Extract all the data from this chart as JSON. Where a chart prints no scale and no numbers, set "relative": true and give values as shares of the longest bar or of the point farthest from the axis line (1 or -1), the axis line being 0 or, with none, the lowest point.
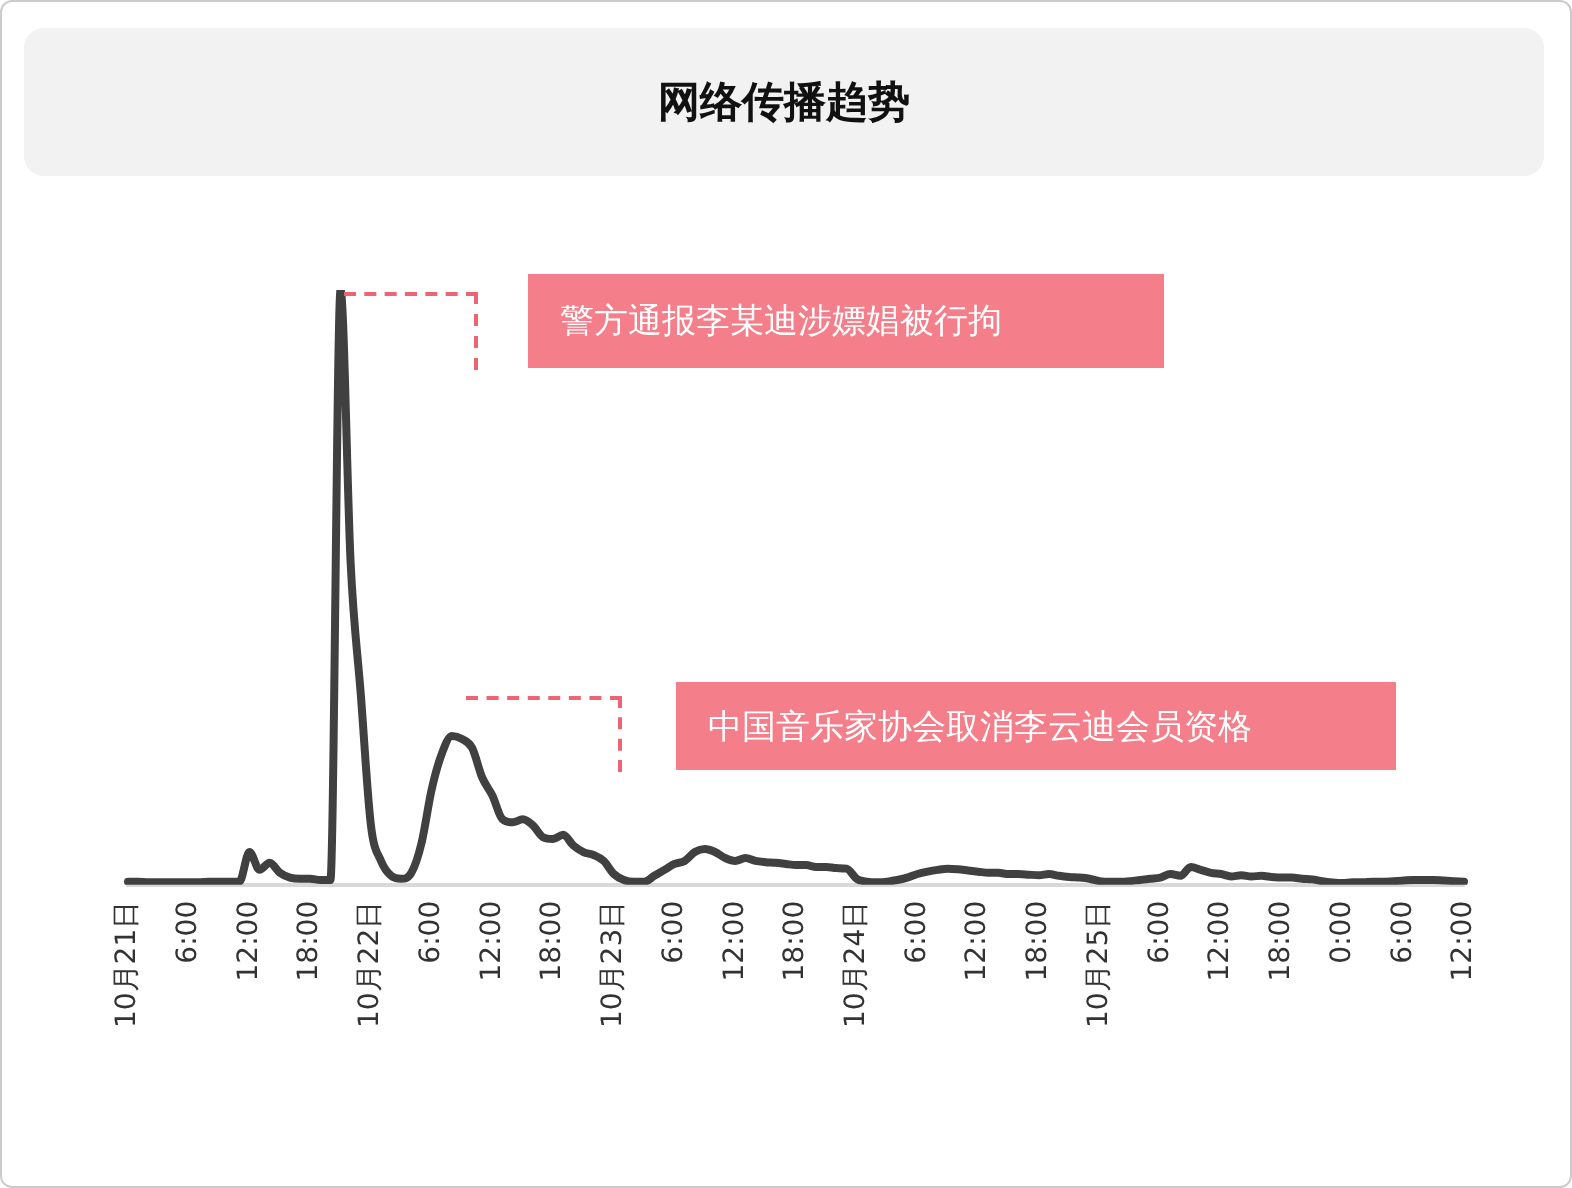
{
  "chart_data": {
    "type": "line",
    "title": "网络传播趋势",
    "relative": true,
    "grid": false,
    "legend": false,
    "marker": "none",
    "line_style": "solid",
    "annotations": [
      "警方通报李某迪涉嫖娼被行拘",
      "中国音乐家协会取消李云迪会员资格"
    ],
    "categories": [
      "10月21日",
      null,
      null,
      null,
      null,
      null,
      "6:00",
      null,
      null,
      null,
      null,
      null,
      "12:00",
      null,
      null,
      null,
      null,
      null,
      "18:00",
      null,
      null,
      null,
      null,
      null,
      "10月22日",
      null,
      null,
      null,
      null,
      null,
      "6:00",
      null,
      null,
      null,
      null,
      null,
      "12:00",
      null,
      null,
      null,
      null,
      null,
      "18:00",
      null,
      null,
      null,
      null,
      null,
      "10月23日",
      null,
      null,
      null,
      null,
      null,
      "6:00",
      null,
      null,
      null,
      null,
      null,
      "12:00",
      null,
      null,
      null,
      null,
      null,
      "18:00",
      null,
      null,
      null,
      null,
      null,
      "10月24日",
      null,
      null,
      null,
      null,
      null,
      "6:00",
      null,
      null,
      null,
      null,
      null,
      "12:00",
      null,
      null,
      null,
      null,
      null,
      "18:00",
      null,
      null,
      null,
      null,
      null,
      "10月25日",
      null,
      null,
      null,
      null,
      null,
      "6:00",
      null,
      null,
      null,
      null,
      null,
      "12:00",
      null,
      null,
      null,
      null,
      null,
      "18:00",
      null,
      null,
      null,
      null,
      null,
      "0:00",
      null,
      null,
      null,
      null,
      null,
      "6:00",
      null,
      null,
      null,
      null,
      null,
      "12:00"
    ],
    "series": [
      {
        "color": "#404040",
        "values": [
          0.005,
          0.005,
          0.004,
          0.004,
          0.004,
          0.004,
          0.004,
          0.004,
          0.005,
          0.005,
          0.005,
          0.005,
          0.055,
          0.025,
          0.037,
          0.02,
          0.012,
          0.01,
          0.01,
          0.008,
          0.008,
          1.0,
          0.54,
          0.32,
          0.1,
          0.04,
          0.015,
          0.01,
          0.02,
          0.07,
          0.16,
          0.22,
          0.25,
          0.245,
          0.23,
          0.18,
          0.15,
          0.11,
          0.105,
          0.11,
          0.1,
          0.08,
          0.077,
          0.084,
          0.066,
          0.055,
          0.05,
          0.04,
          0.018,
          0.008,
          0.005,
          0.005,
          0.015,
          0.025,
          0.035,
          0.04,
          0.055,
          0.06,
          0.055,
          0.045,
          0.04,
          0.045,
          0.04,
          0.038,
          0.037,
          0.035,
          0.033,
          0.033,
          0.03,
          0.03,
          0.028,
          0.027,
          0.01,
          0.005,
          0.004,
          0.005,
          0.008,
          0.012,
          0.018,
          0.022,
          0.025,
          0.027,
          0.026,
          0.024,
          0.022,
          0.02,
          0.02,
          0.018,
          0.018,
          0.017,
          0.016,
          0.018,
          0.015,
          0.013,
          0.012,
          0.01,
          0.006,
          0.005,
          0.005,
          0.006,
          0.008,
          0.01,
          0.012,
          0.018,
          0.015,
          0.03,
          0.025,
          0.02,
          0.018,
          0.014,
          0.016,
          0.014,
          0.015,
          0.013,
          0.012,
          0.012,
          0.01,
          0.009,
          0.006,
          0.004,
          0.003,
          0.004,
          0.004,
          0.005,
          0.005,
          0.006,
          0.007,
          0.008,
          0.008,
          0.008,
          0.007,
          0.006,
          0.005
        ]
      }
    ]
  }
}
